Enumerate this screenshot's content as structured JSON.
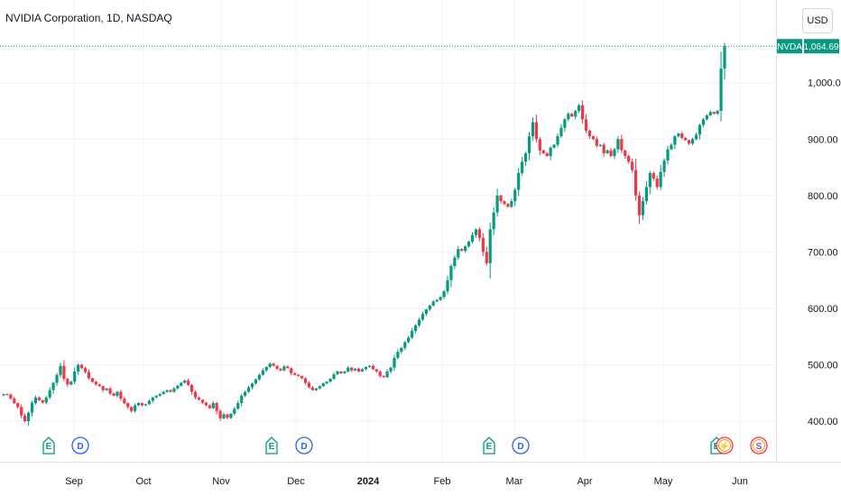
{
  "header": {
    "title": "NVIDIA Corporation, 1D, NASDAQ",
    "currency": "USD"
  },
  "price_tag": {
    "symbol": "NVDA",
    "price": "1,064.69",
    "color": "#089981"
  },
  "colors": {
    "up": "#089981",
    "down": "#f23645",
    "grid": "#f0f3fa",
    "axis_text": "#131722"
  },
  "chart_data": {
    "type": "candlestick",
    "title": "NVIDIA Corporation, 1D, NASDAQ",
    "ylim": [
      375,
      1080
    ],
    "y_ticks": [
      "400.00",
      "500.00",
      "600.00",
      "700.00",
      "800.00",
      "900.00",
      "1,000.00"
    ],
    "y_tick_values": [
      400,
      500,
      600,
      700,
      800,
      900,
      1000
    ],
    "x_ticks": [
      "Sep",
      "Oct",
      "Nov",
      "Dec",
      "2024",
      "Feb",
      "Mar",
      "Apr",
      "May",
      "Jun"
    ],
    "bold_x_ticks": [
      "2024"
    ],
    "grid": true,
    "last_price": 1064.69,
    "closes_first_bar_open": 446,
    "closes": [
      448,
      447,
      440,
      432,
      425,
      410,
      400,
      415,
      432,
      442,
      437,
      433,
      442,
      455,
      468,
      482,
      498,
      475,
      465,
      470,
      488,
      500,
      494,
      487,
      476,
      470,
      465,
      462,
      455,
      458,
      449,
      445,
      452,
      440,
      432,
      425,
      418,
      428,
      432,
      428,
      430,
      436,
      442,
      445,
      448,
      452,
      455,
      452,
      458,
      463,
      468,
      472,
      464,
      452,
      442,
      438,
      433,
      428,
      423,
      432,
      418,
      405,
      412,
      406,
      413,
      422,
      432,
      445,
      452,
      460,
      467,
      474,
      482,
      490,
      496,
      502,
      498,
      493,
      490,
      497,
      494,
      485,
      482,
      480,
      476,
      468,
      460,
      455,
      458,
      462,
      467,
      470,
      475,
      483,
      488,
      485,
      488,
      495,
      490,
      493,
      488,
      492,
      496,
      498,
      492,
      488,
      480,
      478,
      488,
      495,
      512,
      523,
      530,
      540,
      548,
      560,
      570,
      580,
      590,
      598,
      605,
      612,
      615,
      620,
      630,
      650,
      675,
      690,
      705,
      702,
      710,
      718,
      730,
      740,
      725,
      700,
      680,
      740,
      770,
      800,
      790,
      785,
      780,
      790,
      810,
      840,
      860,
      875,
      905,
      930,
      900,
      880,
      875,
      870,
      885,
      890,
      905,
      920,
      935,
      945,
      940,
      950,
      960,
      935,
      915,
      905,
      900,
      888,
      890,
      875,
      880,
      870,
      882,
      900,
      880,
      870,
      860,
      845,
      800,
      765,
      790,
      815,
      840,
      830,
      815,
      842,
      862,
      882,
      890,
      905,
      910,
      902,
      898,
      892,
      900,
      908,
      925,
      935,
      942,
      948,
      945,
      950,
      1025,
      1064.69
    ],
    "events": [
      {
        "label": "E",
        "kind": "earnings",
        "date": "Aug-23"
      },
      {
        "label": "D",
        "kind": "dividend",
        "date": "Sep-06"
      },
      {
        "label": "E",
        "kind": "earnings",
        "date": "Nov-21"
      },
      {
        "label": "D",
        "kind": "dividend",
        "date": "Dec-05"
      },
      {
        "label": "E",
        "kind": "earnings",
        "date": "Feb-21"
      },
      {
        "label": "D",
        "kind": "dividend",
        "date": "Mar-05"
      },
      {
        "label": "E",
        "kind": "earnings",
        "date": "May-22"
      },
      {
        "label": "⚡",
        "kind": "split",
        "date": "May-24"
      },
      {
        "label": "S",
        "kind": "split",
        "date": "Jun-07"
      }
    ]
  }
}
